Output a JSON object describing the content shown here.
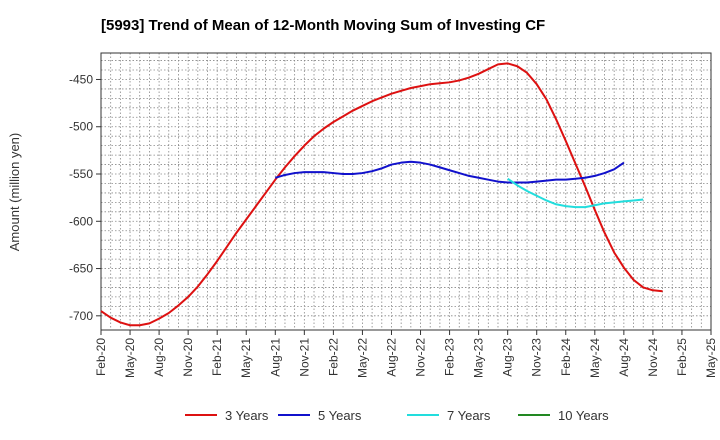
{
  "chart_data": {
    "type": "line",
    "title": "[5993]  Trend of Mean of 12-Month Moving Sum of Investing CF",
    "xlabel": "",
    "ylabel": "Amount (million yen)",
    "ylim": [
      -715,
      -422
    ],
    "yticks": [
      -450,
      -500,
      -550,
      -600,
      -650,
      -700
    ],
    "ytick_labels": [
      "-450",
      "-500",
      "-550",
      "-600",
      "-650",
      "-700"
    ],
    "x_ticks": [
      "Feb-20",
      "May-20",
      "Aug-20",
      "Nov-20",
      "Feb-21",
      "May-21",
      "Aug-21",
      "Nov-21",
      "Feb-22",
      "May-22",
      "Aug-22",
      "Nov-22",
      "Feb-23",
      "May-23",
      "Aug-23",
      "Nov-23",
      "Feb-24",
      "May-24",
      "Aug-24",
      "Nov-24",
      "Feb-25",
      "May-25"
    ],
    "grid": true,
    "legend_position": "bottom",
    "series": [
      {
        "name": "3 Years",
        "color": "#dd1111",
        "start_index": 0,
        "values": [
          -695,
          -702,
          -707,
          -710,
          -710,
          -708,
          -703,
          -697,
          -689,
          -680,
          -669,
          -656,
          -642,
          -627,
          -612,
          -598,
          -584,
          -570,
          -556,
          -543,
          -531,
          -520,
          -510,
          -502,
          -495,
          -489,
          -483,
          -478,
          -473,
          -469,
          -465,
          -462,
          -459,
          -457,
          -455,
          -454,
          -453,
          -451,
          -448,
          -444,
          -439,
          -434,
          -433,
          -436,
          -443,
          -455,
          -471,
          -492,
          -515,
          -539,
          -563,
          -588,
          -612,
          -633,
          -649,
          -662,
          -670,
          -673,
          -674
        ]
      },
      {
        "name": "5 Years",
        "color": "#1111cc",
        "start_index": 18,
        "values": [
          -554,
          -551,
          -549,
          -548,
          -548,
          -548,
          -549,
          -550,
          -550,
          -549,
          -547,
          -544,
          -540,
          -538,
          -537,
          -538,
          -540,
          -543,
          -546,
          -549,
          -552,
          -554,
          -556,
          -558,
          -559,
          -559,
          -559,
          -558,
          -557,
          -556,
          -556,
          -555,
          -554,
          -552,
          -549,
          -545,
          -538
        ]
      },
      {
        "name": "7 Years",
        "color": "#22dddd",
        "start_index": 42,
        "values": [
          -555,
          -562,
          -568,
          -573,
          -578,
          -582,
          -584,
          -585,
          -585,
          -583,
          -581,
          -580,
          -579,
          -578,
          -577
        ]
      },
      {
        "name": "10 Years",
        "color": "#228822",
        "start_index": 0,
        "values": []
      }
    ]
  }
}
